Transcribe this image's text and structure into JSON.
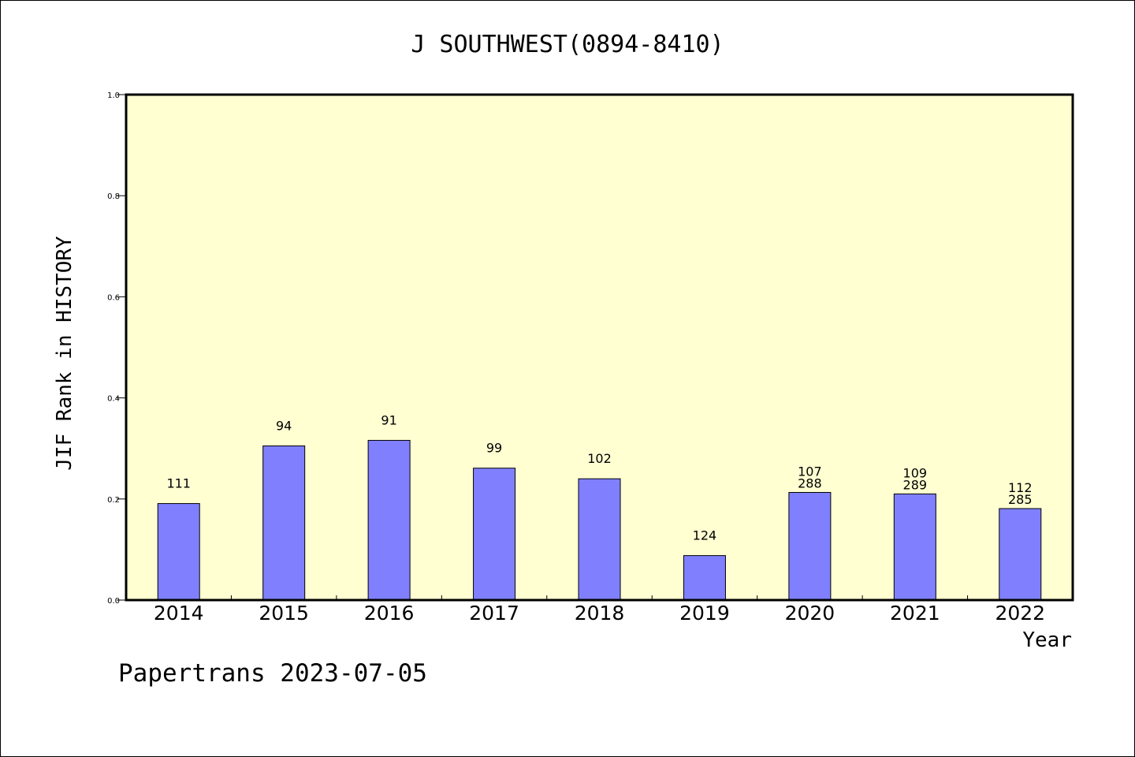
{
  "chart_data": {
    "type": "bar",
    "title": "J SOUTHWEST(0894-8410)",
    "xlabel": "Year",
    "ylabel": "JIF Rank in HISTORY",
    "ylim": [
      0,
      1.0
    ],
    "yticks": [
      "0.0",
      "0.2",
      "0.4",
      "0.6",
      "0.8",
      "1.0"
    ],
    "grid": false,
    "plot_background": "#ffffd2",
    "bar_color": "#8080ff",
    "categories": [
      "2014",
      "2015",
      "2016",
      "2017",
      "2018",
      "2019",
      "2020",
      "2021",
      "2022"
    ],
    "values": [
      0.191,
      0.305,
      0.316,
      0.261,
      0.24,
      0.088,
      0.213,
      0.21,
      0.181
    ],
    "labels": [
      [
        "111"
      ],
      [
        "94"
      ],
      [
        "91"
      ],
      [
        "99"
      ],
      [
        "102"
      ],
      [
        "124"
      ],
      [
        "107",
        "288"
      ],
      [
        "109",
        "289"
      ],
      [
        "112",
        "285"
      ]
    ]
  },
  "footer": "Papertrans 2023-07-05"
}
